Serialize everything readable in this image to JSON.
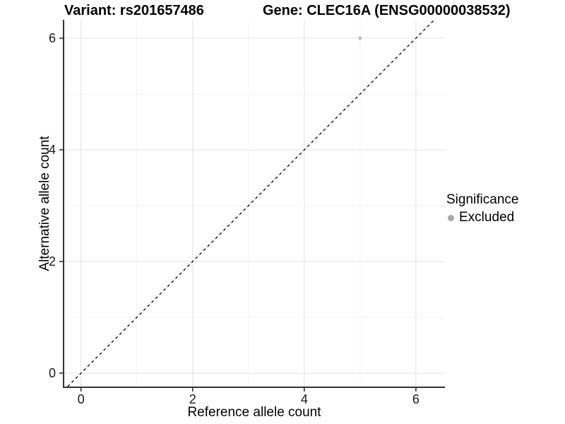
{
  "chart_data": {
    "type": "scatter",
    "title_left": "Variant: rs201657486",
    "title_right": "Gene: CLEC16A (ENSG00000038532)",
    "xlabel": "Reference allele count",
    "ylabel": "Alternative allele count",
    "xlim": [
      -0.3,
      6.52
    ],
    "ylim": [
      -0.24,
      6.33
    ],
    "x_ticks": [
      0,
      2,
      4,
      6
    ],
    "y_ticks": [
      0,
      2,
      4,
      6
    ],
    "x_minor_ticks": [
      1,
      3,
      5
    ],
    "y_minor_ticks": [
      1,
      3,
      5
    ],
    "grid": "major+minor",
    "identity_line": {
      "slope": 1,
      "intercept": 0,
      "style": "dashed",
      "color": "#000000"
    },
    "series": [
      {
        "name": "Excluded",
        "color": "#bfbfbf",
        "points": [
          {
            "x": 5,
            "y": 6
          }
        ]
      }
    ],
    "legend": {
      "title": "Significance",
      "position": "right",
      "entries": [
        {
          "label": "Excluded",
          "color": "#a9a9a9",
          "marker": "circle"
        }
      ]
    }
  },
  "colors": {
    "background": "#ffffff",
    "grid_major": "#e5e5e5",
    "grid_minor": "#f2f2f2",
    "axis_line": "#333333",
    "tick_text": "#1a1a1a",
    "title_text": "#000000"
  }
}
